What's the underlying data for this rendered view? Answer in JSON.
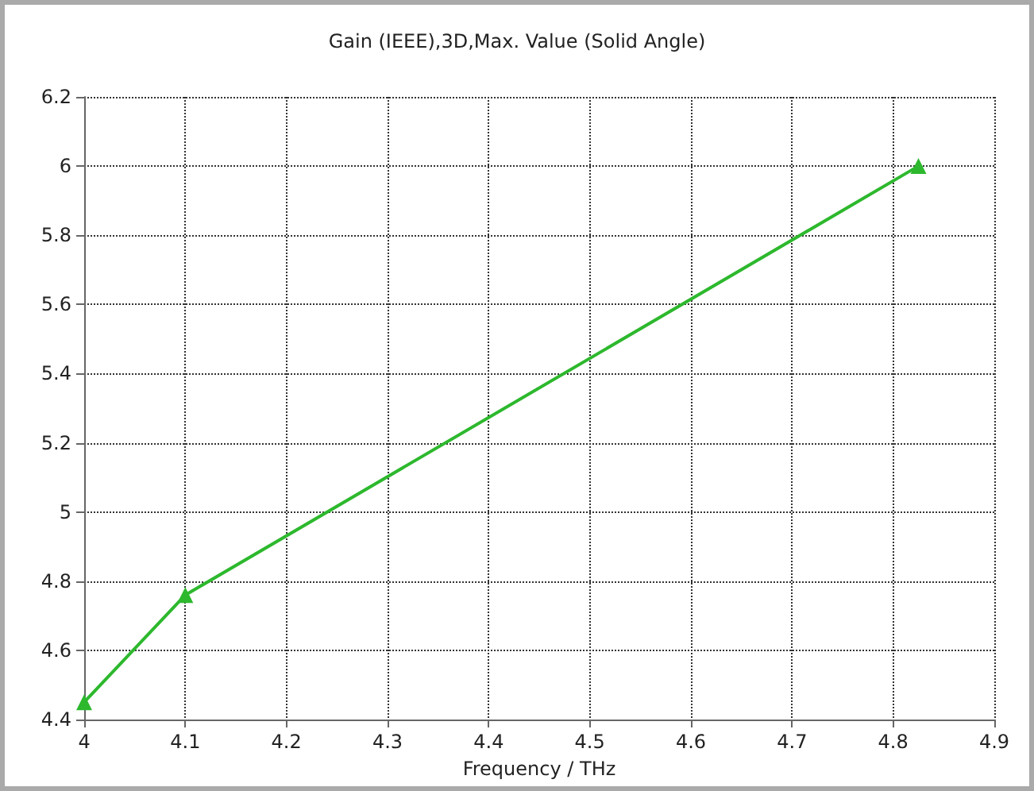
{
  "chart_data": {
    "type": "line",
    "title": "Gain (IEEE),3D,Max. Value (Solid Angle)",
    "xlabel": "Frequency / THz",
    "x": [
      4,
      4.1,
      4.825
    ],
    "series": [
      {
        "color": "#2db82d",
        "values": [
          4.45,
          4.76,
          6.0
        ]
      }
    ],
    "xlim": [
      4,
      4.9
    ],
    "xticks": [
      4,
      4.1,
      4.2,
      4.3,
      4.4,
      4.5,
      4.6,
      4.7,
      4.8,
      4.9
    ],
    "ylim": [
      4.4,
      6.2
    ],
    "yticks": [
      4.4,
      4.6,
      4.8,
      5,
      5.2,
      5.4,
      5.6,
      5.8,
      6,
      6.2
    ],
    "grid": true,
    "marker": "triangle",
    "line_style": "solid"
  }
}
